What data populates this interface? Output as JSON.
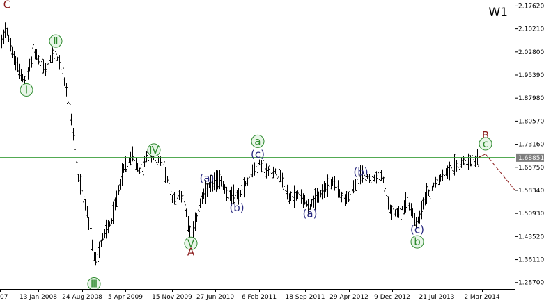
{
  "chart_data": {
    "type": "bar",
    "style": "ohlc",
    "timeframe": "W1",
    "x_tick_labels": [
      "07",
      "13 Jan 2008",
      "24 Aug 2008",
      "5 Apr 2009",
      "15 Nov 2009",
      "27 Jun 2010",
      "6 Feb 2011",
      "18 Sep 2011",
      "29 Apr 2012",
      "9 Dec 2012",
      "21 Jul 2013",
      "2 Mar 2014"
    ],
    "y_ticks": [
      2.1762,
      2.1021,
      2.028,
      1.9539,
      1.8798,
      1.8057,
      1.7316,
      1.6575,
      1.5834,
      1.5093,
      1.4352,
      1.3611,
      1.287
    ],
    "y_tick_labels": [
      "2.17620",
      "2.10210",
      "2.02800",
      "1.95390",
      "1.87980",
      "1.80570",
      "1.73160",
      "1.65750",
      "1.58340",
      "1.50930",
      "1.43520",
      "1.36110",
      "1.28700"
    ],
    "ylim": [
      1.215,
      2.195
    ],
    "current_price": 1.6885,
    "current_price_label": "1.68851",
    "horizontal_line": {
      "price": 1.6885,
      "color": "#3a9e3a"
    },
    "price_path": [
      [
        0,
        2.05
      ],
      [
        8,
        2.11
      ],
      [
        20,
        2.0
      ],
      [
        36,
        1.93
      ],
      [
        48,
        2.03
      ],
      [
        64,
        1.97
      ],
      [
        78,
        2.03
      ],
      [
        88,
        1.97
      ],
      [
        100,
        1.85
      ],
      [
        112,
        1.62
      ],
      [
        124,
        1.52
      ],
      [
        136,
        1.35
      ],
      [
        148,
        1.44
      ],
      [
        160,
        1.49
      ],
      [
        176,
        1.65
      ],
      [
        190,
        1.7
      ],
      [
        200,
        1.64
      ],
      [
        210,
        1.69
      ],
      [
        220,
        1.7
      ],
      [
        234,
        1.66
      ],
      [
        248,
        1.55
      ],
      [
        262,
        1.57
      ],
      [
        274,
        1.43
      ],
      [
        288,
        1.55
      ],
      [
        300,
        1.6
      ],
      [
        316,
        1.62
      ],
      [
        328,
        1.56
      ],
      [
        344,
        1.57
      ],
      [
        360,
        1.64
      ],
      [
        372,
        1.67
      ],
      [
        384,
        1.64
      ],
      [
        398,
        1.65
      ],
      [
        414,
        1.56
      ],
      [
        430,
        1.57
      ],
      [
        444,
        1.53
      ],
      [
        462,
        1.58
      ],
      [
        478,
        1.61
      ],
      [
        494,
        1.55
      ],
      [
        510,
        1.6
      ],
      [
        518,
        1.64
      ],
      [
        532,
        1.62
      ],
      [
        548,
        1.63
      ],
      [
        560,
        1.52
      ],
      [
        572,
        1.51
      ],
      [
        584,
        1.55
      ],
      [
        598,
        1.48
      ],
      [
        612,
        1.57
      ],
      [
        628,
        1.62
      ],
      [
        648,
        1.66
      ],
      [
        666,
        1.68
      ],
      [
        680,
        1.68
      ],
      [
        688,
        1.69
      ]
    ],
    "forecast_path": [
      [
        688,
        1.69
      ],
      [
        697,
        1.7
      ],
      [
        740,
        1.582
      ]
    ],
    "forecast_color": "#8b1a1a",
    "wave_labels": [
      {
        "text": "C",
        "color": "#8b1a1a",
        "circled": false,
        "bar": 10,
        "price": 2.18
      },
      {
        "text": "Ⅱ",
        "color": "#2e8b2e",
        "circled": true,
        "bar": 80,
        "price": 2.063
      },
      {
        "text": "Ⅰ",
        "color": "#2e8b2e",
        "circled": true,
        "bar": 38,
        "price": 1.906
      },
      {
        "text": "Ⅲ",
        "color": "#2e8b2e",
        "circled": true,
        "bar": 135,
        "price": 1.283
      },
      {
        "text": "Ⅳ",
        "color": "#2e8b2e",
        "circled": true,
        "bar": 221,
        "price": 1.713
      },
      {
        "text": "Ⅴ",
        "color": "#2e8b2e",
        "circled": true,
        "bar": 274,
        "price": 1.413
      },
      {
        "text": "A",
        "color": "#8b1a1a",
        "circled": false,
        "bar": 274,
        "price": 1.386
      },
      {
        "text": "(a)",
        "color": "#2a2a80",
        "circled": false,
        "bar": 297,
        "price": 1.622
      },
      {
        "text": "(b)",
        "color": "#2a2a80",
        "circled": false,
        "bar": 340,
        "price": 1.527
      },
      {
        "text": "a",
        "color": "#2e8b2e",
        "circled": true,
        "bar": 370,
        "price": 1.741
      },
      {
        "text": "(c)",
        "color": "#2a2a80",
        "circled": false,
        "bar": 370,
        "price": 1.699
      },
      {
        "text": "(a)",
        "color": "#2a2a80",
        "circled": false,
        "bar": 445,
        "price": 1.509
      },
      {
        "text": "(b)",
        "color": "#2a2a80",
        "circled": false,
        "bar": 518,
        "price": 1.643
      },
      {
        "text": "(c)",
        "color": "#2a2a80",
        "circled": false,
        "bar": 599,
        "price": 1.457
      },
      {
        "text": "b",
        "color": "#2e8b2e",
        "circled": true,
        "bar": 599,
        "price": 1.418
      },
      {
        "text": "B",
        "color": "#8b1a1a",
        "circled": false,
        "bar": 697,
        "price": 1.76
      },
      {
        "text": "c",
        "color": "#2e8b2e",
        "circled": true,
        "bar": 697,
        "price": 1.733
      }
    ]
  }
}
